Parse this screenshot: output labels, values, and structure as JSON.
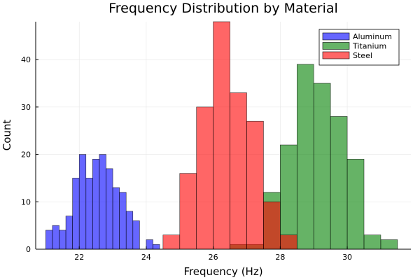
{
  "chart_data": {
    "type": "bar",
    "subtype": "overlaid-histogram",
    "title": "Frequency Distribution by Material",
    "xlabel": "Frequency (Hz)",
    "ylabel": "Count",
    "xlim": [
      20.7,
      31.9
    ],
    "ylim": [
      0,
      48
    ],
    "x_ticks": [
      22,
      24,
      26,
      28,
      30
    ],
    "y_ticks": [
      0,
      10,
      20,
      30,
      40
    ],
    "grid": true,
    "legend_position": "top-right",
    "series": [
      {
        "name": "Aluminum",
        "color": "#0000ff",
        "opacity": 0.6,
        "bin_width": 0.2,
        "bins": [
          {
            "x0": 21.0,
            "x1": 21.2,
            "count": 4
          },
          {
            "x0": 21.2,
            "x1": 21.4,
            "count": 5
          },
          {
            "x0": 21.4,
            "x1": 21.6,
            "count": 4
          },
          {
            "x0": 21.6,
            "x1": 21.8,
            "count": 7
          },
          {
            "x0": 21.8,
            "x1": 22.0,
            "count": 15
          },
          {
            "x0": 22.0,
            "x1": 22.2,
            "count": 20
          },
          {
            "x0": 22.2,
            "x1": 22.4,
            "count": 15
          },
          {
            "x0": 22.4,
            "x1": 22.6,
            "count": 19
          },
          {
            "x0": 22.6,
            "x1": 22.8,
            "count": 20
          },
          {
            "x0": 22.8,
            "x1": 23.0,
            "count": 17
          },
          {
            "x0": 23.0,
            "x1": 23.2,
            "count": 13
          },
          {
            "x0": 23.2,
            "x1": 23.4,
            "count": 12
          },
          {
            "x0": 23.4,
            "x1": 23.6,
            "count": 8
          },
          {
            "x0": 23.6,
            "x1": 23.8,
            "count": 6
          },
          {
            "x0": 24.0,
            "x1": 24.2,
            "count": 2
          },
          {
            "x0": 24.2,
            "x1": 24.4,
            "count": 1
          }
        ]
      },
      {
        "name": "Titanium",
        "color": "#008000",
        "opacity": 0.6,
        "bin_width": 0.5,
        "bins": [
          {
            "x0": 26.5,
            "x1": 27.0,
            "count": 1
          },
          {
            "x0": 27.0,
            "x1": 27.5,
            "count": 1
          },
          {
            "x0": 27.5,
            "x1": 28.0,
            "count": 12
          },
          {
            "x0": 28.0,
            "x1": 28.5,
            "count": 22
          },
          {
            "x0": 28.5,
            "x1": 29.0,
            "count": 39
          },
          {
            "x0": 29.0,
            "x1": 29.5,
            "count": 35
          },
          {
            "x0": 29.5,
            "x1": 30.0,
            "count": 28
          },
          {
            "x0": 30.0,
            "x1": 30.5,
            "count": 19
          },
          {
            "x0": 30.5,
            "x1": 31.0,
            "count": 3
          },
          {
            "x0": 31.0,
            "x1": 31.5,
            "count": 2
          }
        ]
      },
      {
        "name": "Steel",
        "color": "#ff0000",
        "opacity": 0.6,
        "bin_width": 0.5,
        "bins": [
          {
            "x0": 24.5,
            "x1": 25.0,
            "count": 3
          },
          {
            "x0": 25.0,
            "x1": 25.5,
            "count": 16
          },
          {
            "x0": 25.5,
            "x1": 26.0,
            "count": 30
          },
          {
            "x0": 26.0,
            "x1": 26.5,
            "count": 48
          },
          {
            "x0": 26.5,
            "x1": 27.0,
            "count": 33
          },
          {
            "x0": 27.0,
            "x1": 27.5,
            "count": 27
          },
          {
            "x0": 27.5,
            "x1": 28.0,
            "count": 10
          },
          {
            "x0": 28.0,
            "x1": 28.5,
            "count": 3
          }
        ]
      }
    ]
  }
}
